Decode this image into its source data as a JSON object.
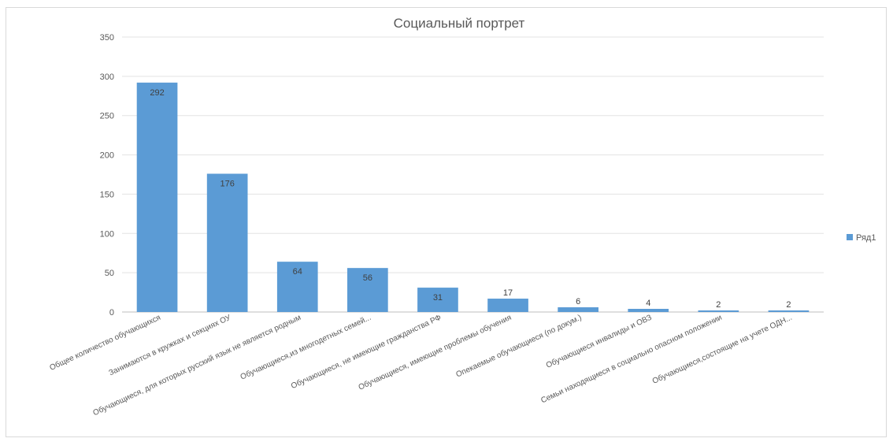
{
  "chart_data": {
    "type": "bar",
    "title": "Социальный портрет",
    "xlabel": "",
    "ylabel": "",
    "ylim": [
      0,
      350
    ],
    "yticks": [
      0,
      50,
      100,
      150,
      200,
      250,
      300,
      350
    ],
    "grid": true,
    "legend_position": "right",
    "bar_color": "#5b9bd5",
    "categories": [
      "Общее количество обучающихся",
      "Занимаются в кружках и секциях ОУ",
      "Обучающиеся, для которых русский язык не является родным",
      "Обучающиеся,из многодетных семей...",
      "Обучающиеся, не имеющие гражданства РФ",
      "Обучающиеся, имеющие проблемы обучения",
      "Опекаемые обучающиеся (по докум.)",
      "Обучающиеся инвалиды и ОВЗ",
      "Семьи находящиеся в социально опасном положении",
      "Обучающиеся,состоящие на учете ОДН..."
    ],
    "series": [
      {
        "name": "Ряд1",
        "values": [
          292,
          176,
          64,
          56,
          31,
          17,
          6,
          4,
          2,
          2
        ]
      }
    ]
  }
}
